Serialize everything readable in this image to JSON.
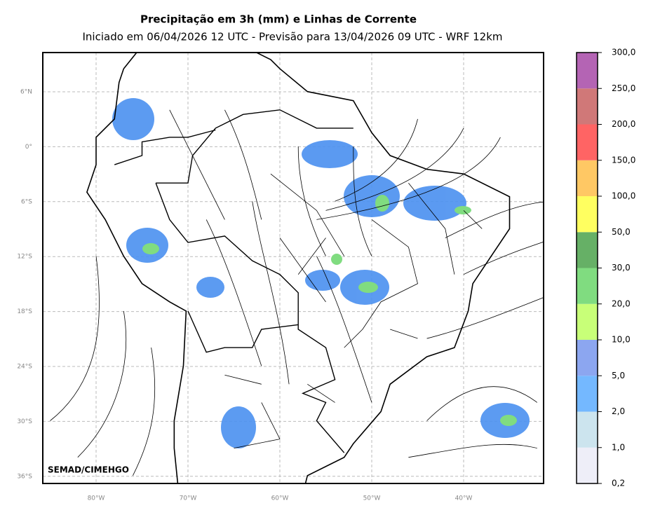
{
  "header": {
    "title": "Precipitação em 3h (mm) e Linhas de Corrente",
    "subtitle": "Iniciado em 06/04/2026 12 UTC - Previsão para 13/04/2026 09 UTC - WRF 12km"
  },
  "map": {
    "credit": "SEMAD/CIMEHGO",
    "lat_labels": [
      "6°N",
      "0°",
      "6°S",
      "12°S",
      "18°S",
      "24°S",
      "30°S",
      "36°S"
    ],
    "lon_labels": [
      "80°W",
      "70°W",
      "60°W",
      "50°W",
      "40°W"
    ]
  },
  "colorbar": {
    "labels": [
      "0,2",
      "1,0",
      "2,0",
      "5,0",
      "10,0",
      "20,0",
      "30,0",
      "50,0",
      "100,0",
      "150,0",
      "200,0",
      "250,0",
      "300,0"
    ],
    "colors": [
      "#eeeef8",
      "#cce4ee",
      "#74b8ff",
      "#8ca6f0",
      "#c8ff78",
      "#80dc80",
      "#66b066",
      "#ffff60",
      "#ffc864",
      "#ff6464",
      "#d07878",
      "#b464b4"
    ]
  }
}
